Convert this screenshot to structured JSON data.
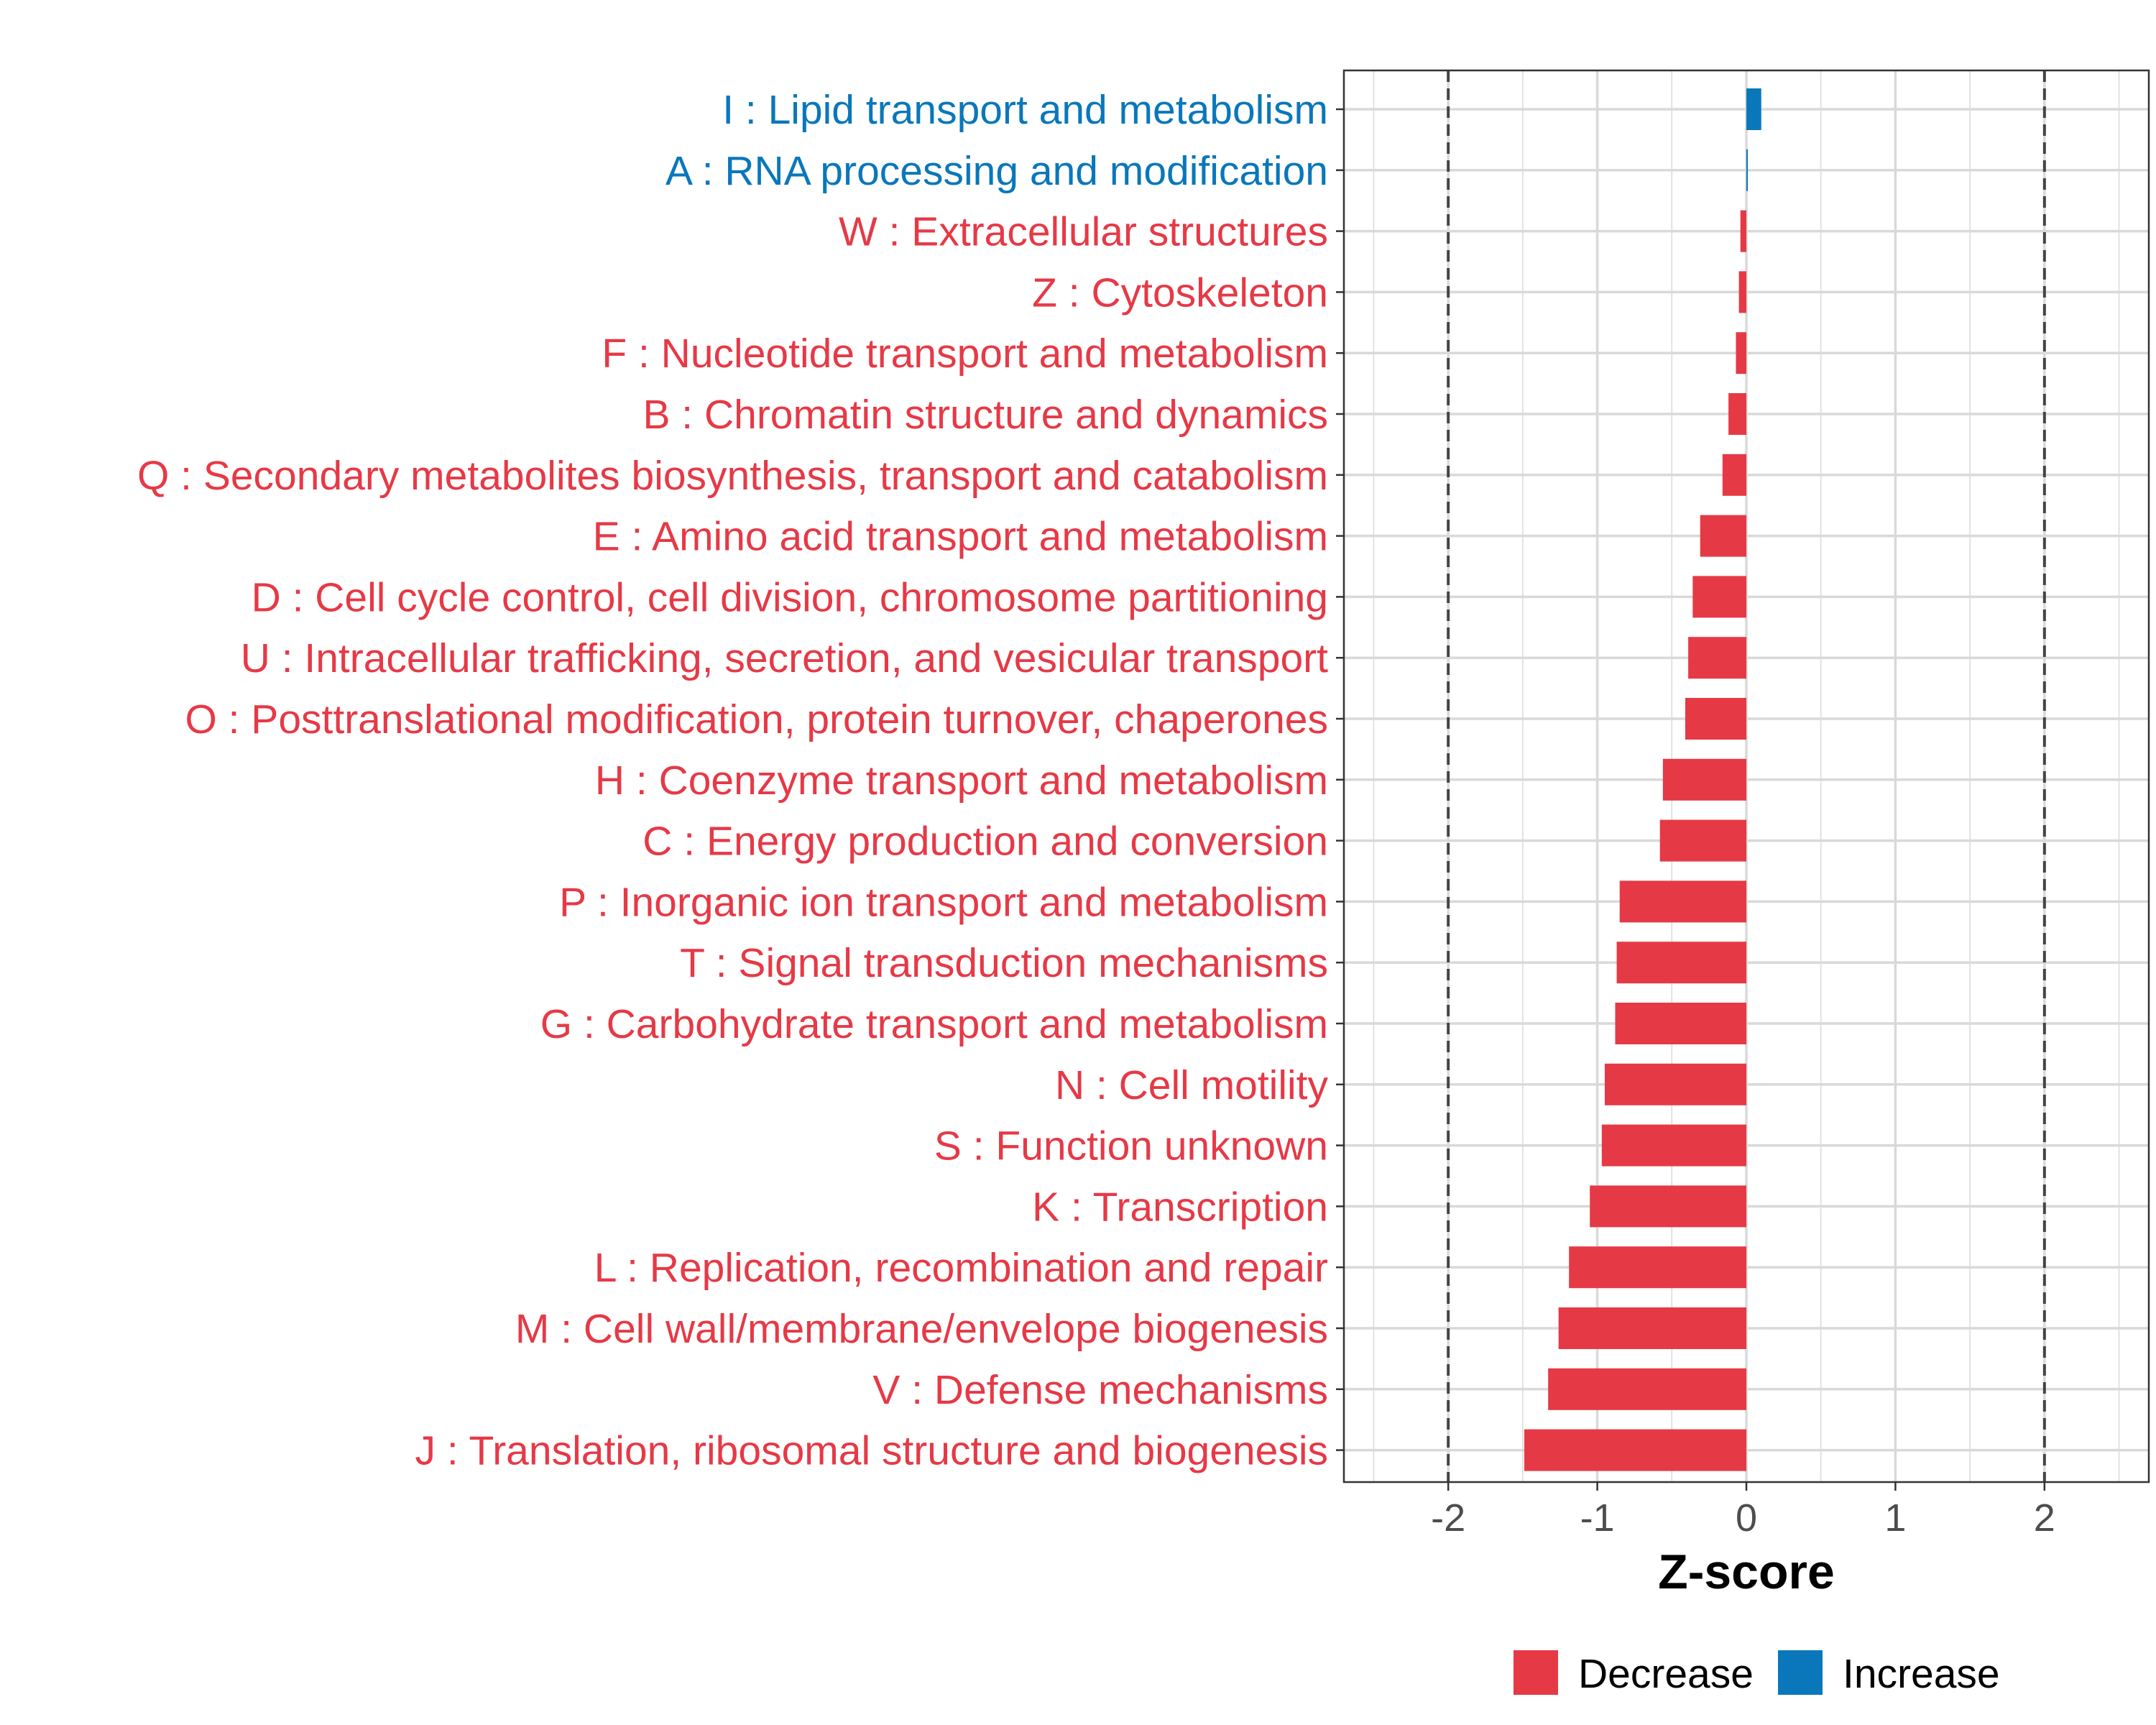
{
  "chart_data": {
    "type": "bar",
    "orientation": "horizontal",
    "xlabel": "Z-score",
    "ylabel": "",
    "xlim": [
      -2.7,
      2.7
    ],
    "x_ticks": [
      -2,
      -1,
      0,
      1,
      2
    ],
    "x_tick_labels": [
      "-2",
      "-1",
      "0",
      "1",
      "2"
    ],
    "reference_lines": [
      -2,
      2
    ],
    "grid": true,
    "legend_position": "bottom",
    "colors": {
      "Decrease": "#e63946",
      "Increase": "#0a77bb",
      "dashed_line": "#444444",
      "grid": "#d9d9d9"
    },
    "legend": [
      {
        "key": "Decrease",
        "label": "Decrease"
      },
      {
        "key": "Increase",
        "label": "Increase"
      }
    ],
    "categories": [
      {
        "label": "I : Lipid transport and metabolism",
        "value": 0.1,
        "direction": "Increase"
      },
      {
        "label": "A : RNA processing and modification",
        "value": 0.01,
        "direction": "Increase"
      },
      {
        "label": "W : Extracellular structures",
        "value": -0.04,
        "direction": "Decrease"
      },
      {
        "label": "Z : Cytoskeleton",
        "value": -0.05,
        "direction": "Decrease"
      },
      {
        "label": "F : Nucleotide transport and metabolism",
        "value": -0.07,
        "direction": "Decrease"
      },
      {
        "label": "B : Chromatin structure and dynamics",
        "value": -0.12,
        "direction": "Decrease"
      },
      {
        "label": "Q : Secondary metabolites biosynthesis, transport and catabolism",
        "value": -0.16,
        "direction": "Decrease"
      },
      {
        "label": "E : Amino acid transport and metabolism",
        "value": -0.31,
        "direction": "Decrease"
      },
      {
        "label": "D : Cell cycle control, cell division, chromosome partitioning",
        "value": -0.36,
        "direction": "Decrease"
      },
      {
        "label": "U : Intracellular trafficking, secretion, and vesicular transport",
        "value": -0.39,
        "direction": "Decrease"
      },
      {
        "label": "O : Posttranslational modification, protein turnover, chaperones",
        "value": -0.41,
        "direction": "Decrease"
      },
      {
        "label": "H : Coenzyme transport and metabolism",
        "value": -0.56,
        "direction": "Decrease"
      },
      {
        "label": "C : Energy production and conversion",
        "value": -0.58,
        "direction": "Decrease"
      },
      {
        "label": "P : Inorganic ion transport and metabolism",
        "value": -0.85,
        "direction": "Decrease"
      },
      {
        "label": "T : Signal transduction mechanisms",
        "value": -0.87,
        "direction": "Decrease"
      },
      {
        "label": "G : Carbohydrate transport and metabolism",
        "value": -0.88,
        "direction": "Decrease"
      },
      {
        "label": "N : Cell motility",
        "value": -0.95,
        "direction": "Decrease"
      },
      {
        "label": "S : Function unknown",
        "value": -0.97,
        "direction": "Decrease"
      },
      {
        "label": "K : Transcription",
        "value": -1.05,
        "direction": "Decrease"
      },
      {
        "label": "L : Replication, recombination and repair",
        "value": -1.19,
        "direction": "Decrease"
      },
      {
        "label": "M : Cell wall/membrane/envelope biogenesis",
        "value": -1.26,
        "direction": "Decrease"
      },
      {
        "label": "V : Defense mechanisms",
        "value": -1.33,
        "direction": "Decrease"
      },
      {
        "label": "J : Translation, ribosomal structure and biogenesis",
        "value": -1.49,
        "direction": "Decrease"
      }
    ]
  }
}
